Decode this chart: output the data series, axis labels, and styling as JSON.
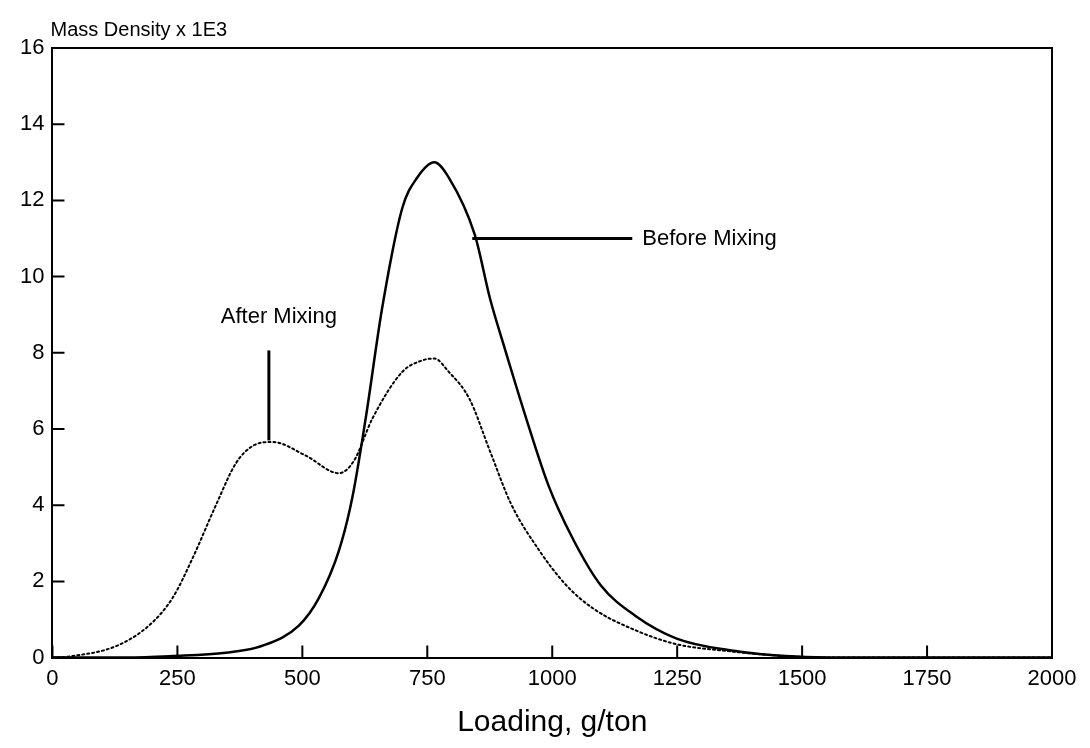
{
  "chart_data": {
    "type": "line",
    "ylabel": "Mass Density x 1E3",
    "xlabel": "Loading, g/ton",
    "xlim": [
      0,
      2000
    ],
    "xticks": [
      0,
      250,
      500,
      750,
      1000,
      1250,
      1500,
      1750,
      2000
    ],
    "ylim": [
      0,
      16
    ],
    "yticks": [
      0,
      2,
      4,
      6,
      8,
      10,
      12,
      14,
      16
    ],
    "grid": false,
    "legend": false,
    "marker": "none",
    "annotations": [
      {
        "text": "After Mixing",
        "x": 433,
        "y": 5.7
      },
      {
        "text": "Before Mixing",
        "x": 840,
        "y": 11
      }
    ],
    "series": [
      {
        "color": "#000000",
        "line_style": "dotted",
        "x": [
          0,
          40,
          127,
          193,
          240,
          280,
          327,
          367,
          400,
          440,
          507,
          573,
          603,
          640,
          700,
          740,
          764,
          793,
          834,
          876,
          917,
          972,
          1028,
          1083,
          1166,
          1249,
          1352,
          1456,
          1550,
          2000
        ],
        "values": [
          0,
          0.04,
          0.3,
          0.84,
          1.56,
          2.6,
          4.0,
          5.1,
          5.55,
          5.66,
          5.3,
          4.84,
          5.16,
          6.27,
          7.5,
          7.8,
          7.85,
          7.5,
          6.8,
          5.4,
          4.05,
          2.85,
          1.9,
          1.28,
          0.72,
          0.35,
          0.17,
          0.05,
          0,
          0
        ]
      },
      {
        "color": "#000000",
        "line_style": "solid",
        "x": [
          0,
          150,
          240,
          347,
          420,
          493,
          533,
          573,
          600,
          627,
          660,
          700,
          730,
          764,
          793,
          845,
          876,
          903,
          945,
          993,
          1042,
          1097,
          1166,
          1249,
          1352,
          1497,
          1600,
          2000
        ],
        "values": [
          0,
          0,
          0.04,
          0.13,
          0.31,
          0.84,
          1.56,
          2.8,
          4.2,
          6.3,
          9.2,
          11.8,
          12.6,
          13.0,
          12.6,
          11.1,
          9.4,
          8.2,
          6.4,
          4.5,
          3.1,
          1.9,
          1.1,
          0.5,
          0.2,
          0.02,
          0,
          0
        ]
      }
    ]
  }
}
